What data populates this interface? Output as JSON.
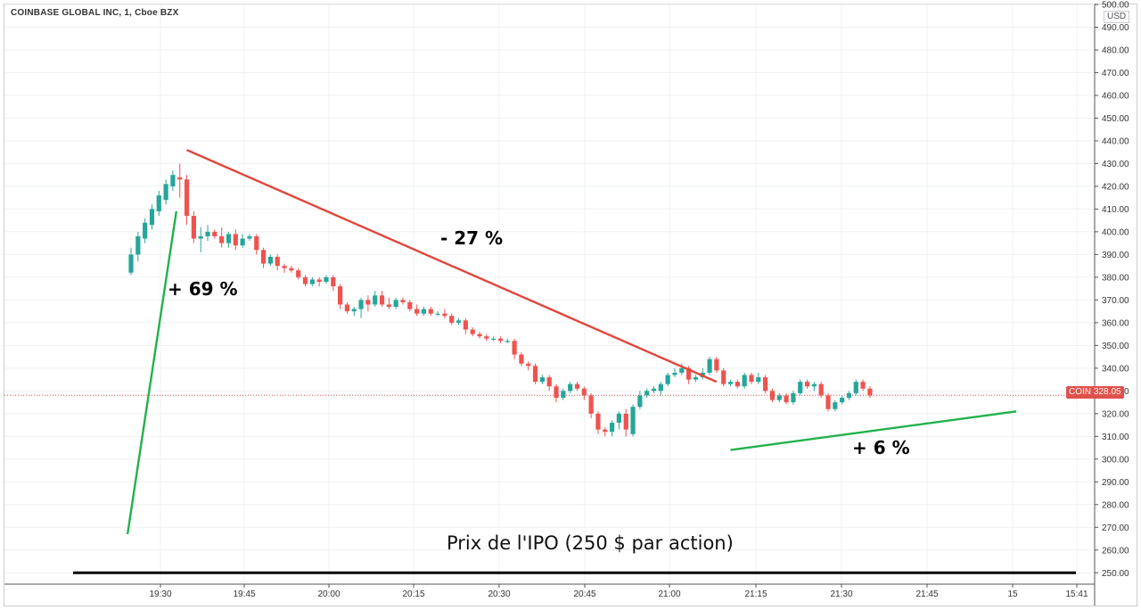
{
  "header": {
    "symbol_title": "COINBASE GLOBAL INC, 1, Cboe BZX",
    "currency": "USD"
  },
  "price_badge": {
    "ticker": "COIN",
    "price": "328.05"
  },
  "annotations": {
    "gain_open": "+ 69 %",
    "decline": "- 27 %",
    "gain_late": "+ 6 %",
    "ipo_label": "Prix de l'IPO (250 $ par action)"
  },
  "colors": {
    "up": "#26a69a",
    "down": "#ef5350",
    "trend_up": "#22b14c",
    "trend_down": "#e0473c",
    "ipo_line": "#000000",
    "grid": "#eef0f3"
  },
  "chart_data": {
    "type": "candlestick",
    "title": "COINBASE GLOBAL INC, 1, Cboe BZX",
    "xlabel": "",
    "ylabel": "USD",
    "ylim": [
      245,
      500
    ],
    "yticks": [
      250,
      260,
      270,
      280,
      290,
      300,
      310,
      320,
      330,
      340,
      350,
      360,
      370,
      380,
      390,
      400,
      410,
      420,
      430,
      440,
      450,
      460,
      470,
      480,
      490,
      500
    ],
    "xtick_labels": [
      "19:30",
      "19:45",
      "20:00",
      "20:15",
      "20:30",
      "20:45",
      "21:00",
      "21:15",
      "21:30",
      "21:45",
      "15",
      "15:41"
    ],
    "last_price": 328.05,
    "ipo_price": 250,
    "candles": [
      {
        "o": 382,
        "c": 390,
        "h": 393,
        "l": 381
      },
      {
        "o": 390,
        "c": 398,
        "h": 400,
        "l": 387
      },
      {
        "o": 397,
        "c": 404,
        "h": 406,
        "l": 395
      },
      {
        "o": 403,
        "c": 410,
        "h": 412,
        "l": 401
      },
      {
        "o": 409,
        "c": 416,
        "h": 418,
        "l": 407
      },
      {
        "o": 414,
        "c": 421,
        "h": 423,
        "l": 412
      },
      {
        "o": 420,
        "c": 425,
        "h": 427,
        "l": 418
      },
      {
        "o": 424,
        "c": 423,
        "h": 430,
        "l": 415
      },
      {
        "o": 423,
        "c": 407,
        "h": 425,
        "l": 403
      },
      {
        "o": 407,
        "c": 397,
        "h": 409,
        "l": 395
      },
      {
        "o": 397,
        "c": 398,
        "h": 402,
        "l": 391
      },
      {
        "o": 398,
        "c": 400,
        "h": 403,
        "l": 396
      },
      {
        "o": 400,
        "c": 398,
        "h": 401,
        "l": 397
      },
      {
        "o": 398,
        "c": 395,
        "h": 402,
        "l": 393
      },
      {
        "o": 395,
        "c": 399,
        "h": 400,
        "l": 393
      },
      {
        "o": 399,
        "c": 394,
        "h": 401,
        "l": 392
      },
      {
        "o": 394,
        "c": 397,
        "h": 399,
        "l": 393
      },
      {
        "o": 397,
        "c": 398,
        "h": 399,
        "l": 396
      },
      {
        "o": 398,
        "c": 392,
        "h": 399,
        "l": 390
      },
      {
        "o": 392,
        "c": 386,
        "h": 393,
        "l": 384
      },
      {
        "o": 386,
        "c": 389,
        "h": 390,
        "l": 385
      },
      {
        "o": 389,
        "c": 385,
        "h": 390,
        "l": 383
      },
      {
        "o": 385,
        "c": 384,
        "h": 386,
        "l": 382
      },
      {
        "o": 384,
        "c": 383,
        "h": 385,
        "l": 382
      },
      {
        "o": 383,
        "c": 380,
        "h": 384,
        "l": 379
      },
      {
        "o": 380,
        "c": 377,
        "h": 381,
        "l": 376
      },
      {
        "o": 377,
        "c": 379,
        "h": 380,
        "l": 376
      },
      {
        "o": 379,
        "c": 378,
        "h": 380,
        "l": 376
      },
      {
        "o": 378,
        "c": 380,
        "h": 381,
        "l": 377
      },
      {
        "o": 380,
        "c": 376,
        "h": 381,
        "l": 374
      },
      {
        "o": 376,
        "c": 368,
        "h": 377,
        "l": 366
      },
      {
        "o": 368,
        "c": 365,
        "h": 369,
        "l": 364
      },
      {
        "o": 365,
        "c": 366,
        "h": 367,
        "l": 363
      },
      {
        "o": 366,
        "c": 370,
        "h": 371,
        "l": 362
      },
      {
        "o": 370,
        "c": 368,
        "h": 372,
        "l": 365
      },
      {
        "o": 368,
        "c": 372,
        "h": 374,
        "l": 367
      },
      {
        "o": 372,
        "c": 368,
        "h": 374,
        "l": 367
      },
      {
        "o": 368,
        "c": 367,
        "h": 371,
        "l": 366
      },
      {
        "o": 367,
        "c": 370,
        "h": 371,
        "l": 366
      },
      {
        "o": 370,
        "c": 369,
        "h": 371,
        "l": 368
      },
      {
        "o": 369,
        "c": 366,
        "h": 370,
        "l": 365
      },
      {
        "o": 366,
        "c": 364,
        "h": 368,
        "l": 363
      },
      {
        "o": 364,
        "c": 366,
        "h": 367,
        "l": 363
      },
      {
        "o": 366,
        "c": 364,
        "h": 367,
        "l": 363
      },
      {
        "o": 364,
        "c": 364,
        "h": 365,
        "l": 363
      },
      {
        "o": 364,
        "c": 363,
        "h": 366,
        "l": 362
      },
      {
        "o": 363,
        "c": 360,
        "h": 364,
        "l": 359
      },
      {
        "o": 360,
        "c": 361,
        "h": 362,
        "l": 359
      },
      {
        "o": 361,
        "c": 357,
        "h": 362,
        "l": 355
      },
      {
        "o": 357,
        "c": 355,
        "h": 358,
        "l": 354
      },
      {
        "o": 355,
        "c": 354,
        "h": 356,
        "l": 353
      },
      {
        "o": 354,
        "c": 353,
        "h": 355,
        "l": 352
      },
      {
        "o": 353,
        "c": 353,
        "h": 354,
        "l": 352
      },
      {
        "o": 353,
        "c": 352,
        "h": 354,
        "l": 351
      },
      {
        "o": 352,
        "c": 352,
        "h": 353,
        "l": 351
      },
      {
        "o": 352,
        "c": 346,
        "h": 353,
        "l": 344
      },
      {
        "o": 346,
        "c": 342,
        "h": 347,
        "l": 341
      },
      {
        "o": 342,
        "c": 341,
        "h": 343,
        "l": 339
      },
      {
        "o": 341,
        "c": 334,
        "h": 342,
        "l": 333
      },
      {
        "o": 334,
        "c": 336,
        "h": 337,
        "l": 333
      },
      {
        "o": 336,
        "c": 332,
        "h": 337,
        "l": 330
      },
      {
        "o": 332,
        "c": 327,
        "h": 333,
        "l": 325
      },
      {
        "o": 327,
        "c": 330,
        "h": 331,
        "l": 326
      },
      {
        "o": 330,
        "c": 333,
        "h": 334,
        "l": 329
      },
      {
        "o": 333,
        "c": 331,
        "h": 334,
        "l": 330
      },
      {
        "o": 331,
        "c": 328,
        "h": 332,
        "l": 326
      },
      {
        "o": 328,
        "c": 320,
        "h": 329,
        "l": 318
      },
      {
        "o": 320,
        "c": 313,
        "h": 321,
        "l": 311
      },
      {
        "o": 313,
        "c": 312,
        "h": 314,
        "l": 310
      },
      {
        "o": 312,
        "c": 316,
        "h": 317,
        "l": 310
      },
      {
        "o": 316,
        "c": 320,
        "h": 321,
        "l": 313
      },
      {
        "o": 320,
        "c": 313,
        "h": 322,
        "l": 310
      },
      {
        "o": 311,
        "c": 323,
        "h": 324,
        "l": 310
      },
      {
        "o": 323,
        "c": 328,
        "h": 330,
        "l": 322
      },
      {
        "o": 328,
        "c": 330,
        "h": 331,
        "l": 327
      },
      {
        "o": 330,
        "c": 331,
        "h": 332,
        "l": 329
      },
      {
        "o": 330,
        "c": 333,
        "h": 334,
        "l": 328
      },
      {
        "o": 333,
        "c": 337,
        "h": 338,
        "l": 332
      },
      {
        "o": 337,
        "c": 338,
        "h": 340,
        "l": 336
      },
      {
        "o": 338,
        "c": 340,
        "h": 342,
        "l": 337
      },
      {
        "o": 340,
        "c": 335,
        "h": 341,
        "l": 333
      },
      {
        "o": 335,
        "c": 336,
        "h": 337,
        "l": 334
      },
      {
        "o": 336,
        "c": 338,
        "h": 340,
        "l": 335
      },
      {
        "o": 338,
        "c": 344,
        "h": 345,
        "l": 337
      },
      {
        "o": 344,
        "c": 339,
        "h": 345,
        "l": 338
      },
      {
        "o": 339,
        "c": 333,
        "h": 340,
        "l": 332
      },
      {
        "o": 333,
        "c": 334,
        "h": 335,
        "l": 332
      },
      {
        "o": 334,
        "c": 332,
        "h": 335,
        "l": 331
      },
      {
        "o": 332,
        "c": 337,
        "h": 338,
        "l": 331
      },
      {
        "o": 337,
        "c": 334,
        "h": 338,
        "l": 333
      },
      {
        "o": 334,
        "c": 336,
        "h": 338,
        "l": 333
      },
      {
        "o": 336,
        "c": 330,
        "h": 337,
        "l": 329
      },
      {
        "o": 330,
        "c": 326,
        "h": 331,
        "l": 325
      },
      {
        "o": 326,
        "c": 328,
        "h": 329,
        "l": 325
      },
      {
        "o": 328,
        "c": 325,
        "h": 329,
        "l": 324
      },
      {
        "o": 325,
        "c": 329,
        "h": 330,
        "l": 324
      },
      {
        "o": 329,
        "c": 334,
        "h": 335,
        "l": 328
      },
      {
        "o": 334,
        "c": 332,
        "h": 335,
        "l": 331
      },
      {
        "o": 332,
        "c": 333,
        "h": 334,
        "l": 330
      },
      {
        "o": 333,
        "c": 328,
        "h": 334,
        "l": 327
      },
      {
        "o": 328,
        "c": 322,
        "h": 329,
        "l": 321
      },
      {
        "o": 322,
        "c": 325,
        "h": 326,
        "l": 321
      },
      {
        "o": 325,
        "c": 327,
        "h": 328,
        "l": 324
      },
      {
        "o": 327,
        "c": 329,
        "h": 330,
        "l": 326
      },
      {
        "o": 329,
        "c": 334,
        "h": 335,
        "l": 328
      },
      {
        "o": 334,
        "c": 331,
        "h": 335,
        "l": 330
      },
      {
        "o": 331,
        "c": 328,
        "h": 332,
        "l": 327
      }
    ],
    "trendlines": [
      {
        "name": "gain_open",
        "x": [
          -0.5,
          6.5
        ],
        "y": [
          267,
          409
        ]
      },
      {
        "name": "decline",
        "x": [
          8,
          84
        ],
        "y": [
          436,
          334
        ]
      },
      {
        "name": "gain_late",
        "x": [
          86,
          127
        ],
        "y": [
          304,
          321
        ]
      }
    ],
    "grid": true
  }
}
